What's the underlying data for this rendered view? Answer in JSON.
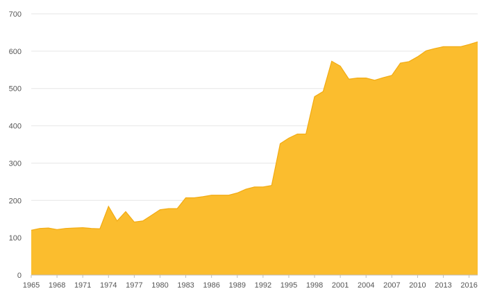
{
  "chart_data": {
    "type": "area",
    "title": "",
    "xlabel": "",
    "ylabel": "",
    "x": [
      1965,
      1966,
      1967,
      1968,
      1969,
      1970,
      1971,
      1972,
      1973,
      1974,
      1975,
      1976,
      1977,
      1978,
      1979,
      1980,
      1981,
      1982,
      1983,
      1984,
      1985,
      1986,
      1987,
      1988,
      1989,
      1990,
      1991,
      1992,
      1993,
      1994,
      1995,
      1996,
      1997,
      1998,
      1999,
      2000,
      2001,
      2002,
      2003,
      2004,
      2005,
      2006,
      2007,
      2008,
      2009,
      2010,
      2011,
      2012,
      2013,
      2014,
      2015,
      2016,
      2017
    ],
    "values": [
      120,
      125,
      126,
      122,
      125,
      126,
      127,
      125,
      124,
      184,
      145,
      170,
      142,
      145,
      160,
      175,
      178,
      178,
      207,
      207,
      210,
      214,
      214,
      214,
      220,
      230,
      236,
      236,
      240,
      352,
      367,
      378,
      378,
      478,
      492,
      573,
      560,
      525,
      528,
      528,
      522,
      529,
      535,
      568,
      572,
      585,
      601,
      607,
      612,
      612,
      612,
      618,
      625
    ],
    "ylim": [
      0,
      700
    ],
    "xlim": [
      1965,
      2017
    ],
    "y_ticks": [
      "0",
      "100",
      "200",
      "300",
      "400",
      "500",
      "600",
      "700"
    ],
    "x_ticks": [
      "1965",
      "1968",
      "1971",
      "1974",
      "1977",
      "1980",
      "1983",
      "1986",
      "1989",
      "1992",
      "1995",
      "1998",
      "2001",
      "2004",
      "2007",
      "2010",
      "2013",
      "2016"
    ],
    "grid": true,
    "legend": "none",
    "colors": {
      "area": "#fbbd2e",
      "line": "#f2ab12",
      "grid": "#e6e6e6",
      "axis": "#bdbdbd",
      "label": "#555555",
      "background": "#ffffff"
    }
  }
}
